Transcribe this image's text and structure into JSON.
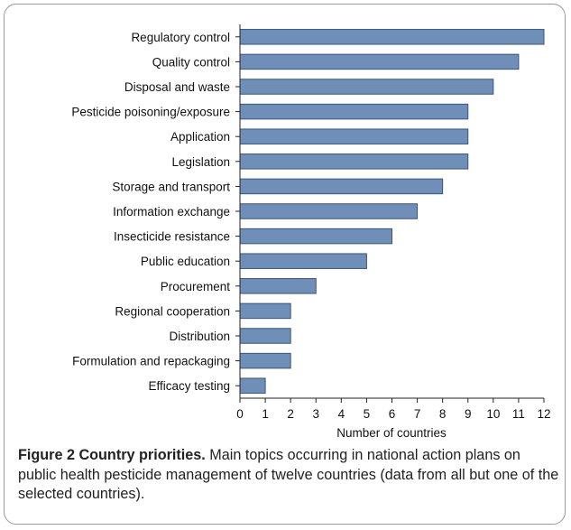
{
  "chart_data": {
    "type": "bar",
    "orientation": "horizontal",
    "categories": [
      "Regulatory control",
      "Quality control",
      "Disposal and waste",
      "Pesticide poisoning/exposure",
      "Application",
      "Legislation",
      "Storage and transport",
      "Information exchange",
      "Insecticide resistance",
      "Public education",
      "Procurement",
      "Regional cooperation",
      "Distribution",
      "Formulation and repackaging",
      "Efficacy testing"
    ],
    "values": [
      12,
      11,
      10,
      9,
      9,
      9,
      8,
      7,
      6,
      5,
      3,
      2,
      2,
      2,
      1
    ],
    "xlabel": "Number of countries",
    "xlim": [
      0,
      12
    ],
    "xticks": [
      0,
      1,
      2,
      3,
      4,
      5,
      6,
      7,
      8,
      9,
      10,
      11,
      12
    ],
    "bar_color": "#6f8fb8",
    "bar_edge_color": "#3b5578",
    "grid": false,
    "legend": "none"
  },
  "caption": {
    "label": "Figure 2",
    "title": "Country priorities.",
    "text": "Main topics occurring in national action plans on public health pesticide management of twelve countries (data from all but one of the selected countries)."
  }
}
